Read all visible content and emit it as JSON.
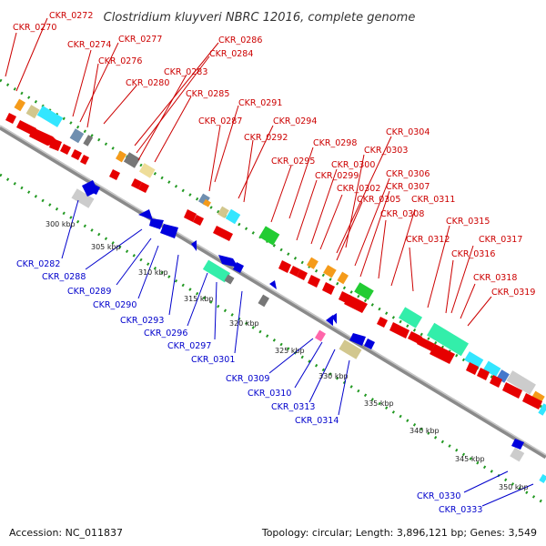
{
  "title": "Clostridium kluyveri NBRC 12016, complete genome",
  "footer": {
    "accession": "Accession: NC_011837",
    "info": "Topology: circular; Length: 3,896,121 bp; Genes: 3,549"
  },
  "colors": {
    "forward": "#cc0000",
    "reverse": "#0000cc",
    "backbone": "#808080",
    "track_dots": "#229922"
  },
  "ticks": [
    "300 kbp",
    "305 kbp",
    "310 kbp",
    "315 kbp",
    "320 kbp",
    "325 kbp",
    "330 kbp",
    "335 kbp",
    "340 kbp",
    "345 kbp",
    "350 kbp"
  ],
  "top_labels": [
    "CKR_0272",
    "CKR_0270",
    "CKR_0274",
    "CKR_0277",
    "CKR_0276",
    "CKR_0286",
    "CKR_0284",
    "CKR_0283",
    "CKR_0280",
    "CKR_0285",
    "CKR_0291",
    "CKR_0287",
    "CKR_0294",
    "CKR_0292",
    "CKR_0298",
    "CKR_0304",
    "CKR_0303",
    "CKR_0295",
    "CKR_0300",
    "CKR_0299",
    "CKR_0302",
    "CKR_0306",
    "CKR_0307",
    "CKR_0305",
    "CKR_0311",
    "CKR_0308",
    "CKR_0315",
    "CKR_0312",
    "CKR_0317",
    "CKR_0316",
    "CKR_0318",
    "CKR_0319"
  ],
  "bottom_labels": [
    "CKR_0282",
    "CKR_0288",
    "CKR_0289",
    "CKR_0290",
    "CKR_0293",
    "CKR_0296",
    "CKR_0297",
    "CKR_0301",
    "CKR_0309",
    "CKR_0310",
    "CKR_0313",
    "CKR_0314",
    "CKR_0330",
    "CKR_0333"
  ]
}
